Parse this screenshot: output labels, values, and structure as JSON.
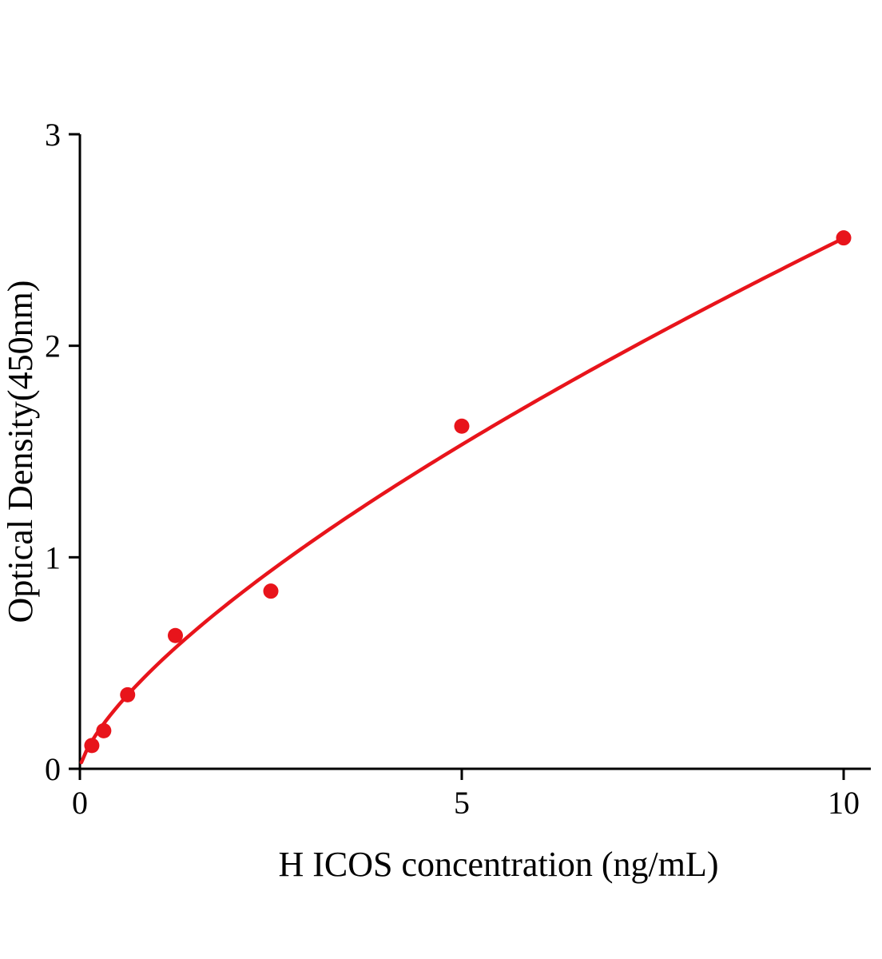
{
  "chart_data": {
    "type": "scatter",
    "title": "",
    "xlabel": "H ICOS concentration (ng/mL)",
    "ylabel": "Optical Density(450nm)",
    "x": [
      0.156,
      0.3125,
      0.625,
      1.25,
      2.5,
      5,
      10
    ],
    "y": [
      0.11,
      0.18,
      0.35,
      0.63,
      0.84,
      1.62,
      2.51
    ],
    "fit": {
      "type": "power",
      "a": 0.488,
      "b": 0.711,
      "x_start": 0.02,
      "x_end": 10
    },
    "xlim": [
      0,
      10
    ],
    "ylim": [
      0,
      3
    ],
    "xticks": [
      0,
      5,
      10
    ],
    "yticks": [
      0,
      1,
      2,
      3
    ],
    "grid": false,
    "legend": null,
    "point_color": "#e8141b",
    "line_color": "#e8141b",
    "axis_color": "#000000"
  }
}
